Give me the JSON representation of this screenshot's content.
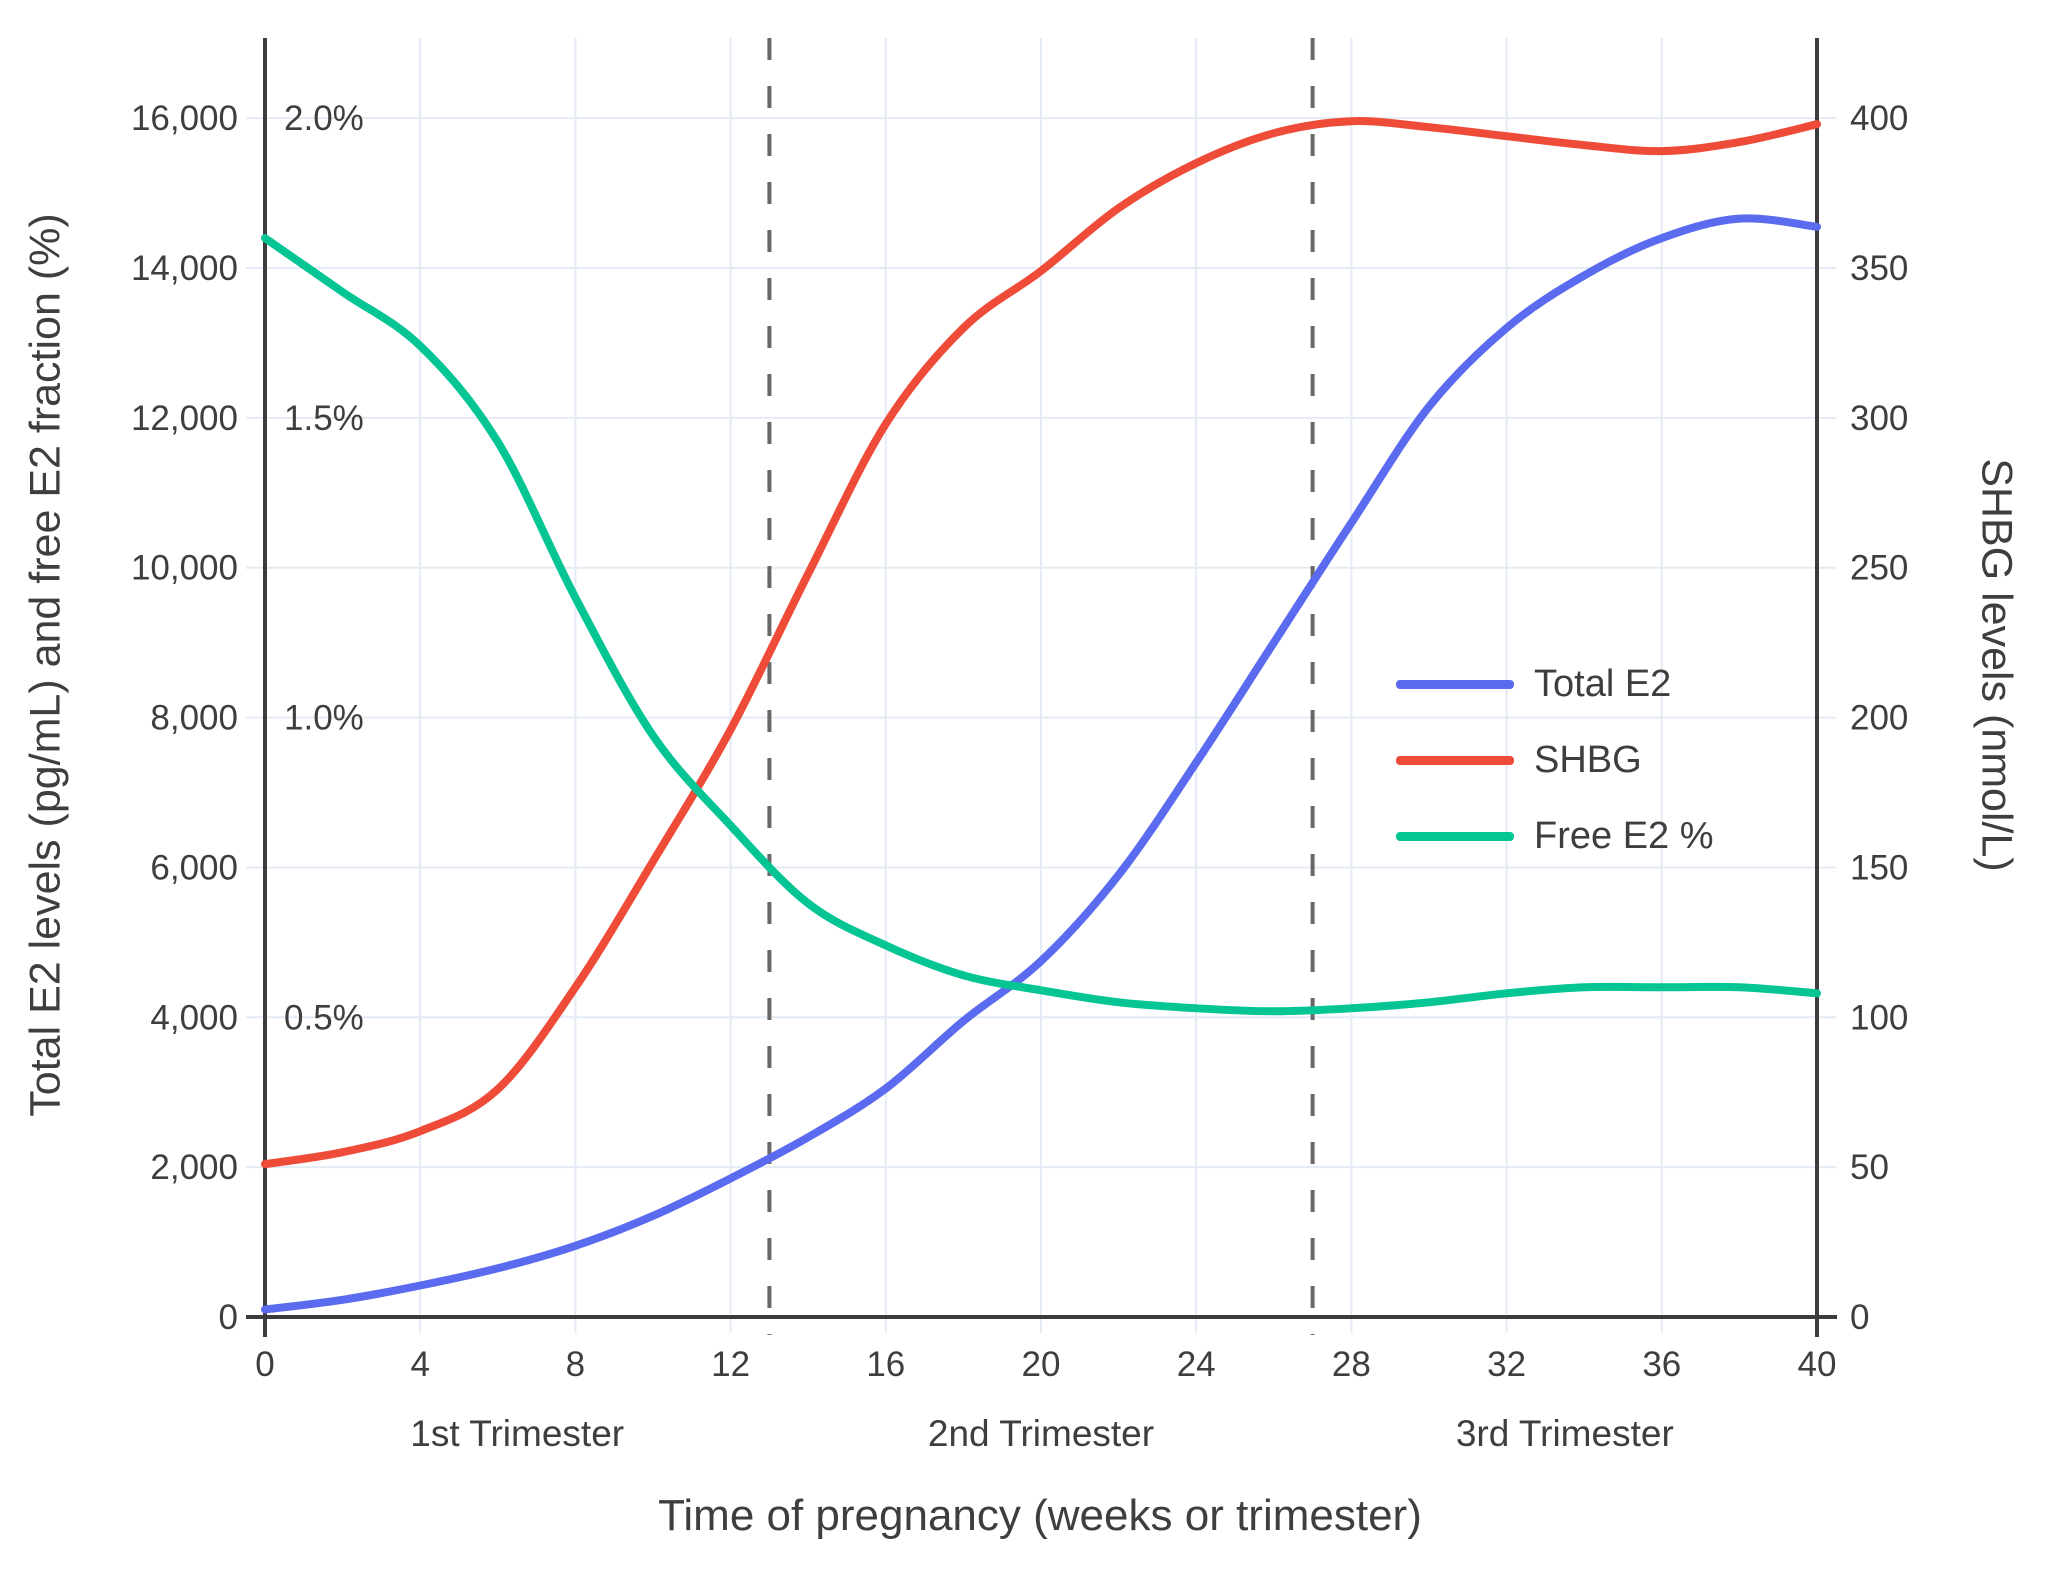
{
  "figure": {
    "x_axis_title": "Time of pregnancy (weeks or trimester)",
    "y_axis_left_title": "Total E2 levels (pg/mL) and free E2 fraction (%)",
    "y_axis_right_title": "SHBG levels (nmol/L)"
  },
  "legend": {
    "items": [
      {
        "label": "Total E2",
        "color": "#5a6bef"
      },
      {
        "label": "SHBG",
        "color": "#ee4b38"
      },
      {
        "label": "Free E2 %",
        "color": "#04c593"
      }
    ]
  },
  "colors": {
    "background": "#ffffff",
    "grid": "#e4ebf5",
    "spine": "#3c3c3c",
    "dashed_line": "#686868",
    "text": "#3e3e3e",
    "total_e2": "#5a6bef",
    "shbg": "#ee4b38",
    "free_e2": "#04c593"
  },
  "chart_data": {
    "type": "line",
    "title": "",
    "xlabel": "Time of pregnancy (weeks or trimester)",
    "ylabel_left": "Total E2 levels (pg/mL) and free E2 fraction (%)",
    "ylabel_right": "SHBG levels (nmol/L)",
    "grid": true,
    "legend_position": "middle-right",
    "x_weeks": [
      0,
      2,
      4,
      6,
      8,
      10,
      12,
      14,
      16,
      18,
      20,
      22,
      24,
      26,
      28,
      30,
      32,
      34,
      36,
      38,
      40
    ],
    "series": [
      {
        "name": "Total E2",
        "axis": "left",
        "units": "pg/mL",
        "color": "#5a6bef",
        "values": [
          100,
          230,
          420,
          650,
          950,
          1350,
          1850,
          2400,
          3050,
          3950,
          4750,
          5900,
          7400,
          9000,
          10600,
          12150,
          13200,
          13900,
          14400,
          14660,
          14550
        ]
      },
      {
        "name": "SHBG",
        "axis": "right",
        "units": "nmol/L",
        "color": "#ee4b38",
        "values": [
          51,
          55,
          62,
          76,
          110,
          152,
          196,
          248,
          298,
          330,
          349,
          370,
          385,
          395,
          399,
          397,
          394,
          391,
          389,
          392,
          398
        ]
      },
      {
        "name": "Free E2 %",
        "axis": "left_percent",
        "units": "%",
        "color": "#04c593",
        "values": [
          1.8,
          1.71,
          1.62,
          1.46,
          1.2,
          0.97,
          0.82,
          0.69,
          0.62,
          0.57,
          0.545,
          0.525,
          0.515,
          0.51,
          0.515,
          0.525,
          0.54,
          0.55,
          0.55,
          0.55,
          0.54
        ]
      }
    ],
    "left_axis": {
      "range": [
        0,
        17070
      ],
      "ticks": [
        0,
        2000,
        4000,
        6000,
        8000,
        10000,
        12000,
        14000,
        16000
      ],
      "tick_labels": [
        "0",
        "2,000",
        "4,000",
        "6,000",
        "8,000",
        "10,000",
        "12,000",
        "14,000",
        "16,000"
      ]
    },
    "percent_labels": [
      {
        "label": "0.5%",
        "at_left_value": 4000
      },
      {
        "label": "1.0%",
        "at_left_value": 8000
      },
      {
        "label": "1.5%",
        "at_left_value": 12000
      },
      {
        "label": "2.0%",
        "at_left_value": 16000
      }
    ],
    "percent_to_left_scale": 8000,
    "right_to_left_scale": 40,
    "right_axis": {
      "range": [
        0,
        426.75
      ],
      "ticks": [
        0,
        50,
        100,
        150,
        200,
        250,
        300,
        350,
        400
      ],
      "tick_labels": [
        "0",
        "50",
        "100",
        "150",
        "200",
        "250",
        "300",
        "350",
        "400"
      ]
    },
    "x_axis": {
      "range": [
        0,
        40
      ],
      "ticks": [
        0,
        4,
        8,
        12,
        16,
        20,
        24,
        28,
        32,
        36,
        40
      ]
    },
    "trimesters": [
      {
        "label": "1st Trimester",
        "center_week": 6.5
      },
      {
        "label": "2nd Trimester",
        "center_week": 20
      },
      {
        "label": "3rd Trimester",
        "center_week": 33.5
      }
    ],
    "dashed_lines_weeks": [
      13,
      27
    ]
  }
}
